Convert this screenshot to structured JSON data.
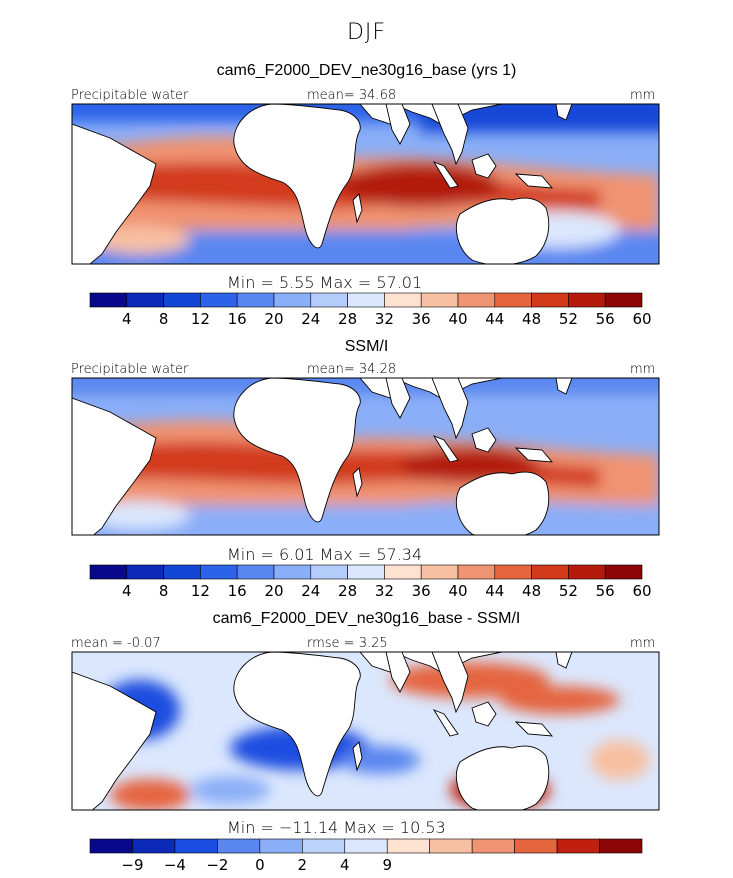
{
  "season": "DJF",
  "colors": {
    "seq": [
      "#08088c",
      "#0c2ab8",
      "#1446d6",
      "#2a62e8",
      "#5a86f0",
      "#8aaef7",
      "#b4cdfb",
      "#dbe7fd",
      "#fde2cf",
      "#f8c0a2",
      "#f09372",
      "#e5653f",
      "#d23a1c",
      "#b31a0c",
      "#8b0505"
    ],
    "diff": [
      "#08088c",
      "#0c2ab8",
      "#1a4ee0",
      "#5a86f0",
      "#8aaef7",
      "#bcd3fb",
      "#dbe7fd",
      "#fde2cf",
      "#f8c0a2",
      "#f09372",
      "#e5653f",
      "#c12010",
      "#8b0505"
    ],
    "land": "#ffffff",
    "coast": "#000000"
  },
  "panels": [
    {
      "id": "model",
      "title": "cam6_F2000_DEV_ne30g16_base (yrs 1)",
      "left_label": "Precipitable water",
      "mid_label": "mean=  34.68",
      "right_label": "mm",
      "minmax": "Min =    5.55  Max =   57.01",
      "colorbar": "seq",
      "ticks": [
        "4",
        "8",
        "12",
        "16",
        "20",
        "24",
        "28",
        "32",
        "36",
        "40",
        "44",
        "48",
        "52",
        "56",
        "60"
      ]
    },
    {
      "id": "obs",
      "title": "SSM/I",
      "left_label": "Precipitable water",
      "mid_label": "mean=  34.28",
      "right_label": "mm",
      "minmax": "Min =    6.01  Max =   57.34",
      "colorbar": "seq",
      "ticks": [
        "4",
        "8",
        "12",
        "16",
        "20",
        "24",
        "28",
        "32",
        "36",
        "40",
        "44",
        "48",
        "52",
        "56",
        "60"
      ]
    },
    {
      "id": "diff",
      "title": "cam6_F2000_DEV_ne30g16_base - SSM/I",
      "left_label": "mean =  -0.07",
      "mid_label": "rmse =    3.25",
      "right_label": "mm",
      "minmax": "Min =  −11.14  Max =   10.53",
      "colorbar": "diff",
      "ticks": [
        "−9",
        "−4",
        "−2",
        "0",
        "2",
        "4",
        "9"
      ]
    }
  ],
  "chart_data": [
    {
      "type": "heatmap",
      "title": "cam6_F2000_DEV_ne30g16_base (yrs 1)",
      "variable": "Precipitable water",
      "units": "mm",
      "mean": 34.68,
      "min": 5.55,
      "max": 57.01,
      "colorbar_levels": [
        4,
        8,
        12,
        16,
        20,
        24,
        28,
        32,
        36,
        40,
        44,
        48,
        52,
        56,
        60
      ]
    },
    {
      "type": "heatmap",
      "title": "SSM/I",
      "variable": "Precipitable water",
      "units": "mm",
      "mean": 34.28,
      "min": 6.01,
      "max": 57.34,
      "colorbar_levels": [
        4,
        8,
        12,
        16,
        20,
        24,
        28,
        32,
        36,
        40,
        44,
        48,
        52,
        56,
        60
      ]
    },
    {
      "type": "heatmap",
      "title": "cam6_F2000_DEV_ne30g16_base - SSM/I",
      "units": "mm",
      "mean": -0.07,
      "rmse": 3.25,
      "min": -11.14,
      "max": 10.53,
      "colorbar_levels": [
        -9,
        -4,
        -2,
        0,
        2,
        4,
        9
      ]
    }
  ]
}
